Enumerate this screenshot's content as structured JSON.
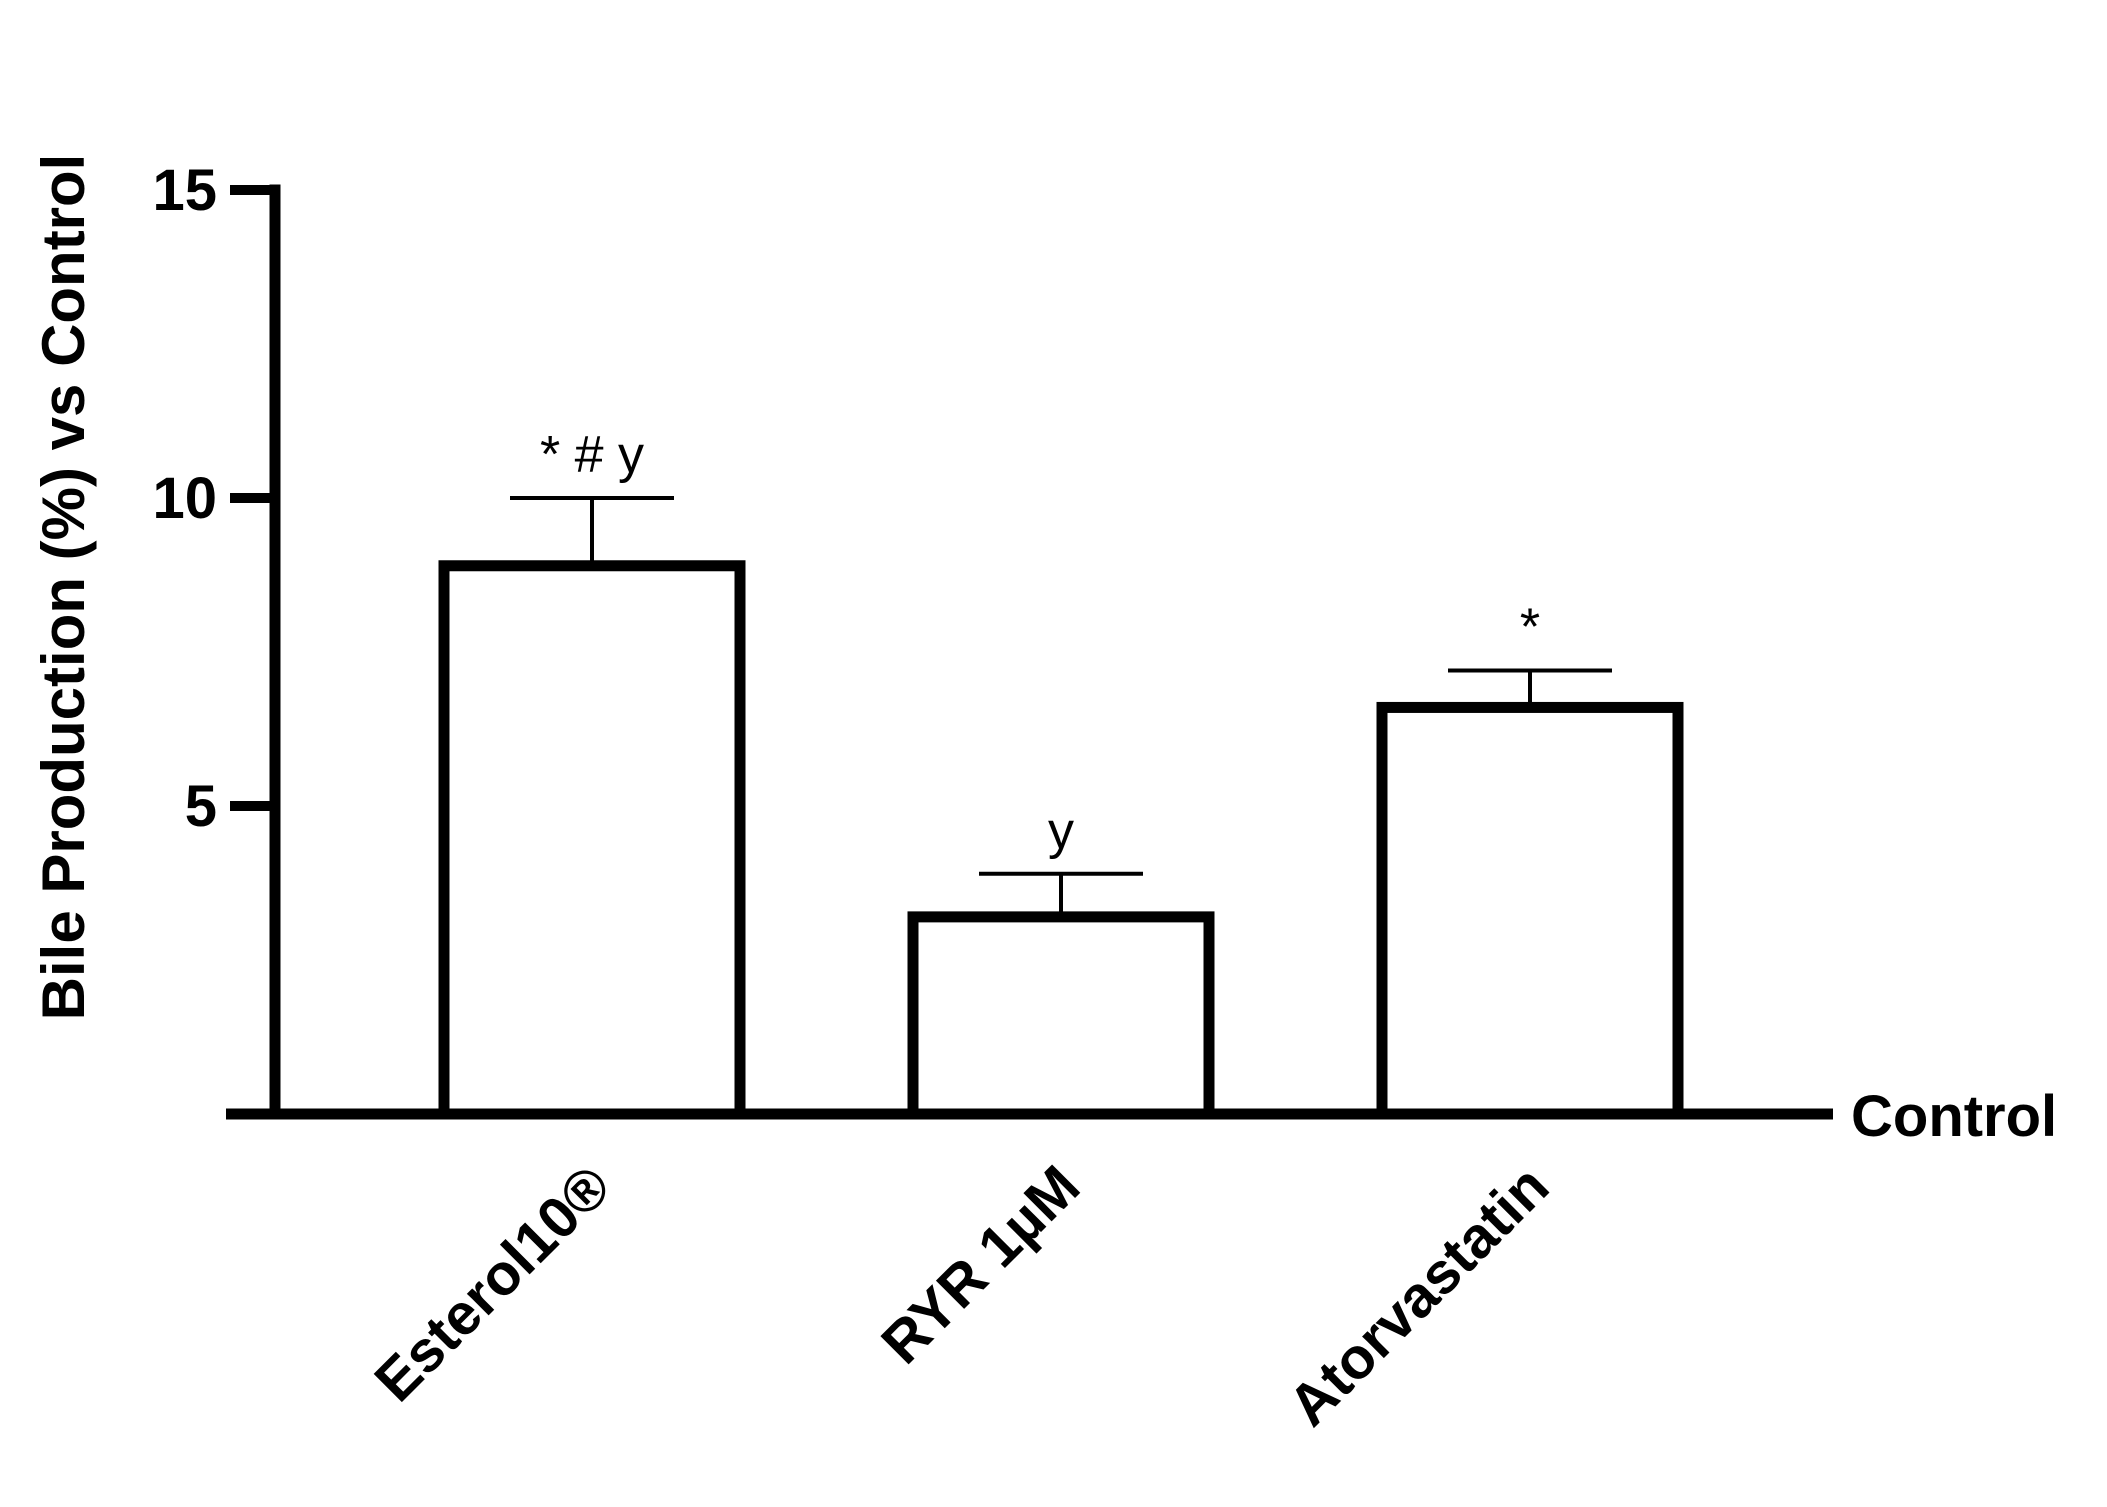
{
  "chart_data": {
    "type": "bar",
    "title": "",
    "ylabel": "Bile Production (%) vs Control",
    "xlabel": "",
    "baseline_label": "Control",
    "ylim": [
      0,
      15
    ],
    "yticks": [
      5,
      10,
      15
    ],
    "yticklabels": [
      "5",
      "10",
      "15"
    ],
    "categories": [
      "Esterol10®",
      "RYR 1µM",
      "Atorvastatin"
    ],
    "values": [
      8.9,
      3.2,
      6.6
    ],
    "errors": [
      1.1,
      0.7,
      0.6
    ],
    "annotations": [
      "* # y",
      "y",
      "*"
    ],
    "bar_fill": "#ffffff",
    "bar_stroke": "#000000",
    "grid": false
  }
}
